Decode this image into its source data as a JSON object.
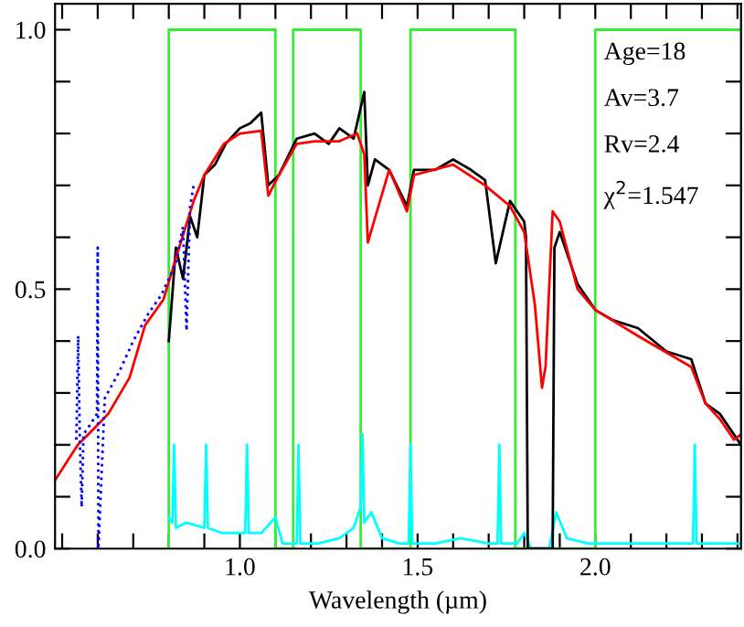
{
  "chart_data": {
    "type": "line",
    "xlabel": "Wavelength (µm)",
    "xlim": [
      0.48,
      2.41
    ],
    "ylim": [
      0.0,
      1.05
    ],
    "xticks": [
      {
        "value": 0.5,
        "label": null
      },
      {
        "value": 0.6,
        "label": null
      },
      {
        "value": 0.7,
        "label": null
      },
      {
        "value": 0.8,
        "label": null
      },
      {
        "value": 0.9,
        "label": null
      },
      {
        "value": 1.0,
        "label": "1.0"
      },
      {
        "value": 1.1,
        "label": null
      },
      {
        "value": 1.2,
        "label": null
      },
      {
        "value": 1.3,
        "label": null
      },
      {
        "value": 1.4,
        "label": null
      },
      {
        "value": 1.5,
        "label": "1.5"
      },
      {
        "value": 1.6,
        "label": null
      },
      {
        "value": 1.7,
        "label": null
      },
      {
        "value": 1.8,
        "label": null
      },
      {
        "value": 1.9,
        "label": null
      },
      {
        "value": 2.0,
        "label": "2.0"
      },
      {
        "value": 2.1,
        "label": null
      },
      {
        "value": 2.2,
        "label": null
      },
      {
        "value": 2.3,
        "label": null
      },
      {
        "value": 2.4,
        "label": null
      }
    ],
    "yticks": [
      {
        "value": 0.0,
        "label": "0.0"
      },
      {
        "value": 0.1,
        "label": null
      },
      {
        "value": 0.2,
        "label": null
      },
      {
        "value": 0.3,
        "label": null
      },
      {
        "value": 0.4,
        "label": null
      },
      {
        "value": 0.5,
        "label": "0.5"
      },
      {
        "value": 0.6,
        "label": null
      },
      {
        "value": 0.7,
        "label": null
      },
      {
        "value": 0.8,
        "label": null
      },
      {
        "value": 0.9,
        "label": null
      },
      {
        "value": 1.0,
        "label": "1.0"
      }
    ],
    "grid": false,
    "legend": false,
    "marker": "none",
    "line_style": "solid",
    "annotations": [
      "Age=18",
      "Av=3.7",
      "Rv=2.4",
      "χ$^{2}$=1.547"
    ],
    "series": [
      {
        "color": "#33ee33",
        "x": [
          0.8,
          0.8,
          1.1,
          1.1,
          1.15,
          1.15,
          1.34,
          1.34,
          1.48,
          1.48,
          1.775,
          1.775,
          2.0,
          2.0,
          2.41
        ],
        "values": [
          0,
          1,
          1,
          0,
          0,
          1,
          1,
          0,
          0,
          1,
          1,
          0,
          0,
          1,
          1
        ]
      },
      {
        "color": "#00ffff",
        "x": [
          0.8,
          0.81,
          0.815,
          0.82,
          0.85,
          0.9,
          0.905,
          0.91,
          0.95,
          1.0,
          1.015,
          1.02,
          1.025,
          1.06,
          1.1,
          1.12,
          1.16,
          1.165,
          1.17,
          1.22,
          1.28,
          1.32,
          1.34,
          1.345,
          1.35,
          1.37,
          1.4,
          1.45,
          1.475,
          1.48,
          1.485,
          1.55,
          1.62,
          1.7,
          1.725,
          1.73,
          1.735,
          1.78,
          1.8,
          1.82,
          1.87,
          1.89,
          1.92,
          1.98,
          2.1,
          2.2,
          2.275,
          2.28,
          2.285,
          2.35,
          2.41
        ],
        "values": [
          0.06,
          0.05,
          0.2,
          0.04,
          0.05,
          0.04,
          0.2,
          0.04,
          0.03,
          0.03,
          0.03,
          0.2,
          0.03,
          0.03,
          0.06,
          0.01,
          0.01,
          0.2,
          0.01,
          0.01,
          0.02,
          0.04,
          0.08,
          0.22,
          0.05,
          0.07,
          0.02,
          0.01,
          0.01,
          0.2,
          0.01,
          0.01,
          0.02,
          0.01,
          0.01,
          0.2,
          0.01,
          0.01,
          0.03,
          0.0,
          0.0,
          0.07,
          0.02,
          0.01,
          0.01,
          0.01,
          0.01,
          0.2,
          0.01,
          0.01,
          0.01
        ]
      },
      {
        "color": "#000000",
        "x": [
          0.8,
          0.82,
          0.84,
          0.86,
          0.88,
          0.9,
          0.93,
          0.96,
          1.0,
          1.03,
          1.06,
          1.08,
          1.11,
          1.16,
          1.21,
          1.25,
          1.28,
          1.32,
          1.35,
          1.36,
          1.38,
          1.42,
          1.47,
          1.49,
          1.55,
          1.6,
          1.65,
          1.69,
          1.72,
          1.76,
          1.8,
          1.805,
          1.81,
          1.88,
          1.885,
          1.9,
          1.95,
          2.0,
          2.05,
          2.12,
          2.2,
          2.27,
          2.31,
          2.35,
          2.39,
          2.41
        ],
        "values": [
          0.4,
          0.58,
          0.52,
          0.64,
          0.6,
          0.72,
          0.74,
          0.78,
          0.81,
          0.82,
          0.84,
          0.7,
          0.72,
          0.79,
          0.8,
          0.78,
          0.81,
          0.79,
          0.88,
          0.7,
          0.75,
          0.73,
          0.66,
          0.73,
          0.73,
          0.75,
          0.73,
          0.71,
          0.55,
          0.67,
          0.63,
          0.6,
          0.0,
          0.0,
          0.58,
          0.61,
          0.51,
          0.46,
          0.44,
          0.425,
          0.38,
          0.365,
          0.28,
          0.26,
          0.22,
          0.2
        ]
      },
      {
        "color": "#ff0000",
        "x": [
          0.482,
          0.544,
          0.595,
          0.63,
          0.69,
          0.733,
          0.785,
          0.82,
          0.87,
          0.9,
          0.955,
          1.0,
          1.06,
          1.08,
          1.11,
          1.16,
          1.21,
          1.28,
          1.33,
          1.35,
          1.36,
          1.42,
          1.47,
          1.49,
          1.6,
          1.69,
          1.76,
          1.8,
          1.83,
          1.85,
          1.86,
          1.88,
          1.9,
          1.95,
          2.0,
          2.12,
          2.27,
          2.31,
          2.35,
          2.39,
          2.41
        ],
        "values": [
          0.134,
          0.2,
          0.235,
          0.26,
          0.33,
          0.43,
          0.48,
          0.56,
          0.67,
          0.72,
          0.78,
          0.8,
          0.805,
          0.68,
          0.72,
          0.78,
          0.785,
          0.785,
          0.8,
          0.76,
          0.59,
          0.73,
          0.65,
          0.72,
          0.74,
          0.7,
          0.66,
          0.61,
          0.47,
          0.31,
          0.35,
          0.65,
          0.63,
          0.5,
          0.46,
          0.41,
          0.35,
          0.28,
          0.25,
          0.21,
          0.22
        ]
      },
      {
        "color": "#0000ff",
        "line_style": "dotted",
        "x": [
          0.54,
          0.545,
          0.55,
          0.555,
          0.56,
          0.58,
          0.598,
          0.6,
          0.602,
          0.62,
          0.66,
          0.7,
          0.74,
          0.78,
          0.8,
          0.82,
          0.84,
          0.85,
          0.86,
          0.87
        ],
        "values": [
          0.21,
          0.41,
          0.2,
          0.08,
          0.22,
          0.24,
          0.26,
          0.58,
          0.0,
          0.29,
          0.34,
          0.4,
          0.45,
          0.49,
          0.52,
          0.55,
          0.62,
          0.42,
          0.66,
          0.7
        ]
      }
    ]
  }
}
